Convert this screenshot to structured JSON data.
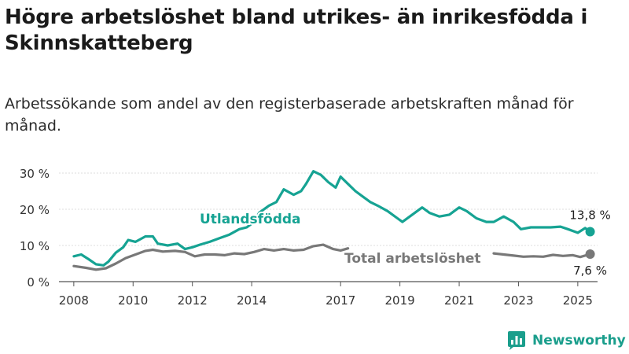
{
  "title": "Högre arbetslöshet bland utrikes- än inrikesfödda i Skinnskatteberg",
  "subtitle": "Arbetssökande som andel av den registerbaserade arbetskraften månad för månad.",
  "brand": {
    "name": "Newsworthy",
    "icon": "bar-chart-logo-icon"
  },
  "colors": {
    "foreign_born": "#16a393",
    "total": "#787878",
    "grid": "#dddddd",
    "axis": "#555555"
  },
  "chart_data": {
    "type": "line",
    "xlabel": "",
    "ylabel": "",
    "x_ticks": [
      "2008",
      "2010",
      "2012",
      "2014",
      "2017",
      "2019",
      "2021",
      "2023",
      "2025"
    ],
    "y_ticks": [
      "0 %",
      "10 %",
      "20 %",
      "30 %"
    ],
    "xlim": [
      "2007-07",
      "2025-09"
    ],
    "ylim": [
      0,
      30
    ],
    "grid": true,
    "series": [
      {
        "name": "Utlandsfödda",
        "color": "#16a393",
        "end_label": "13,8 %",
        "points": [
          [
            "2008-01",
            7.0
          ],
          [
            "2008-04",
            7.5
          ],
          [
            "2008-07",
            6.2
          ],
          [
            "2008-10",
            4.8
          ],
          [
            "2009-01",
            4.5
          ],
          [
            "2009-03",
            5.5
          ],
          [
            "2009-06",
            8.0
          ],
          [
            "2009-09",
            9.5
          ],
          [
            "2009-11",
            11.5
          ],
          [
            "2010-02",
            11.0
          ],
          [
            "2010-06",
            12.5
          ],
          [
            "2010-09",
            12.5
          ],
          [
            "2010-11",
            10.5
          ],
          [
            "2011-03",
            10.0
          ],
          [
            "2011-07",
            10.5
          ],
          [
            "2011-10",
            9.0
          ],
          [
            "2012-01",
            9.5
          ],
          [
            "2012-04",
            10.2
          ],
          [
            "2012-08",
            11.0
          ],
          [
            "2012-12",
            12.0
          ],
          [
            "2013-04",
            13.0
          ],
          [
            "2013-08",
            14.5
          ],
          [
            "2013-11",
            15.0
          ],
          [
            "2014-02",
            16.5
          ],
          [
            "2014-04",
            19.0
          ],
          [
            "2014-08",
            21.0
          ],
          [
            "2014-11",
            22.0
          ],
          [
            "2015-02",
            25.5
          ],
          [
            "2015-06",
            24.0
          ],
          [
            "2015-09",
            25.0
          ],
          [
            "2015-11",
            27.0
          ],
          [
            "2016-02",
            30.5
          ],
          [
            "2016-05",
            29.5
          ],
          [
            "2016-08",
            27.5
          ],
          [
            "2016-11",
            26.0
          ],
          [
            "2017-01",
            29.0
          ],
          [
            "2017-04",
            27.0
          ],
          [
            "2017-07",
            25.0
          ],
          [
            "2017-10",
            23.5
          ],
          [
            "2018-01",
            22.0
          ],
          [
            "2018-04",
            21.0
          ],
          [
            "2018-08",
            19.5
          ],
          [
            "2018-12",
            17.5
          ],
          [
            "2019-02",
            16.5
          ],
          [
            "2019-06",
            18.5
          ],
          [
            "2019-10",
            20.5
          ],
          [
            "2020-01",
            19.0
          ],
          [
            "2020-05",
            18.0
          ],
          [
            "2020-09",
            18.5
          ],
          [
            "2021-01",
            20.5
          ],
          [
            "2021-04",
            19.5
          ],
          [
            "2021-08",
            17.5
          ],
          [
            "2021-12",
            16.5
          ],
          [
            "2022-03",
            16.5
          ],
          [
            "2022-07",
            18.0
          ],
          [
            "2022-11",
            16.5
          ],
          [
            "2023-02",
            14.5
          ],
          [
            "2023-06",
            15.0
          ],
          [
            "2023-10",
            15.0
          ],
          [
            "2024-02",
            15.0
          ],
          [
            "2024-06",
            15.2
          ],
          [
            "2024-09",
            14.5
          ],
          [
            "2025-01",
            13.5
          ],
          [
            "2025-04",
            14.8
          ],
          [
            "2025-06",
            13.8
          ]
        ]
      },
      {
        "name": "Total arbetslöshet",
        "color": "#787878",
        "end_label": "7,6 %",
        "points": [
          [
            "2008-01",
            4.3
          ],
          [
            "2008-06",
            3.8
          ],
          [
            "2008-10",
            3.3
          ],
          [
            "2009-02",
            3.7
          ],
          [
            "2009-06",
            5.0
          ],
          [
            "2009-10",
            6.5
          ],
          [
            "2010-02",
            7.5
          ],
          [
            "2010-06",
            8.5
          ],
          [
            "2010-09",
            8.8
          ],
          [
            "2011-01",
            8.3
          ],
          [
            "2011-06",
            8.5
          ],
          [
            "2011-10",
            8.2
          ],
          [
            "2012-02",
            7.0
          ],
          [
            "2012-06",
            7.5
          ],
          [
            "2012-10",
            7.5
          ],
          [
            "2013-02",
            7.3
          ],
          [
            "2013-06",
            7.8
          ],
          [
            "2013-10",
            7.6
          ],
          [
            "2014-02",
            8.2
          ],
          [
            "2014-06",
            9.0
          ],
          [
            "2014-10",
            8.6
          ],
          [
            "2015-02",
            9.0
          ],
          [
            "2015-06",
            8.6
          ],
          [
            "2015-10",
            8.8
          ],
          [
            "2016-02",
            9.8
          ],
          [
            "2016-06",
            10.2
          ],
          [
            "2016-10",
            9.0
          ],
          [
            "2017-01",
            8.6
          ],
          [
            "2017-04",
            9.2
          ],
          null,
          [
            "2022-03",
            7.8
          ],
          [
            "2022-07",
            7.5
          ],
          [
            "2022-11",
            7.2
          ],
          [
            "2023-03",
            6.9
          ],
          [
            "2023-07",
            7.0
          ],
          [
            "2023-11",
            6.9
          ],
          [
            "2024-03",
            7.4
          ],
          [
            "2024-07",
            7.1
          ],
          [
            "2024-11",
            7.3
          ],
          [
            "2025-02",
            6.8
          ],
          [
            "2025-06",
            7.6
          ]
        ]
      }
    ],
    "annotations": [
      {
        "text": "Utlandsfödda",
        "series": 0
      },
      {
        "text": "Total arbetslöshet",
        "series": 1
      }
    ]
  }
}
